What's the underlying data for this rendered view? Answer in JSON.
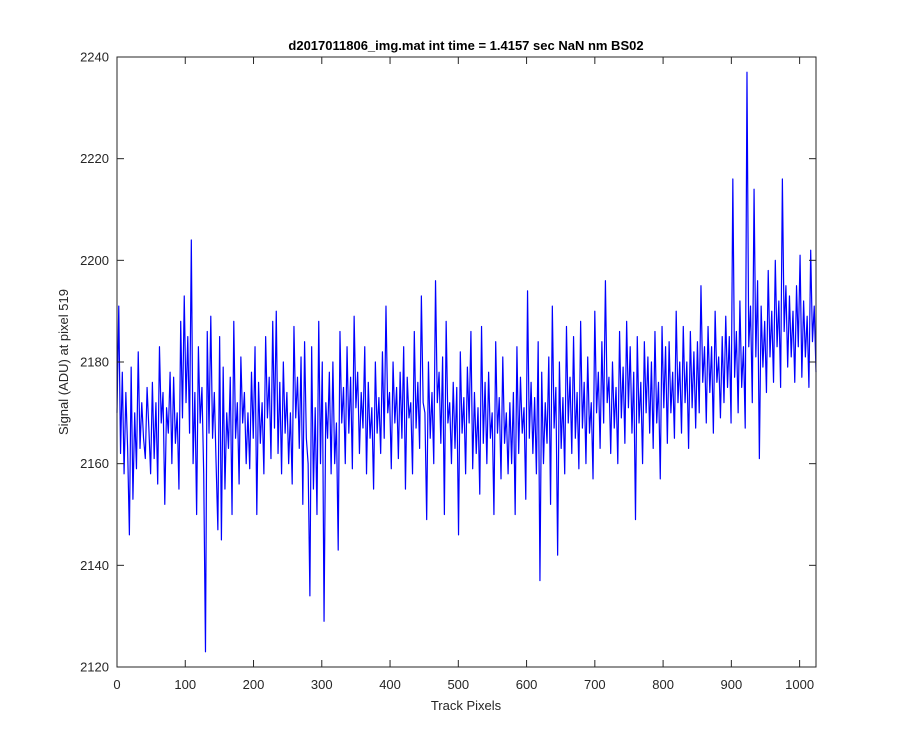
{
  "chart_data": {
    "type": "line",
    "title": "d2017011806_img.mat int time = 1.4157 sec  NaN nm BS02",
    "xlabel": "Track Pixels",
    "ylabel": "Signal (ADU) at pixel 519",
    "xlim": [
      0,
      1024
    ],
    "ylim": [
      2120,
      2240
    ],
    "xticks": [
      0,
      100,
      200,
      300,
      400,
      500,
      600,
      700,
      800,
      900,
      1000
    ],
    "yticks": [
      2120,
      2140,
      2160,
      2180,
      2200,
      2220,
      2240
    ],
    "grid": false,
    "line_color": "#0000ff",
    "series": [
      {
        "values": [
          2170,
          2191,
          2162,
          2178,
          2158,
          2174,
          2163,
          2146,
          2179,
          2153,
          2170,
          2159,
          2182,
          2163,
          2172,
          2165,
          2161,
          2175,
          2167,
          2158,
          2176,
          2161,
          2172,
          2156,
          2183,
          2168,
          2174,
          2152,
          2171,
          2166,
          2178,
          2160,
          2177,
          2164,
          2170,
          2155,
          2188,
          2169,
          2193,
          2172,
          2185,
          2166,
          2204,
          2160,
          2174,
          2150,
          2183,
          2168,
          2175,
          2158,
          2123,
          2186,
          2166,
          2189,
          2165,
          2174,
          2160,
          2147,
          2185,
          2145,
          2179,
          2155,
          2170,
          2163,
          2177,
          2150,
          2188,
          2165,
          2172,
          2156,
          2181,
          2168,
          2174,
          2160,
          2170,
          2159,
          2178,
          2165,
          2183,
          2150,
          2176,
          2164,
          2172,
          2158,
          2185,
          2169,
          2177,
          2161,
          2188,
          2167,
          2190,
          2162,
          2176,
          2158,
          2180,
          2166,
          2174,
          2160,
          2170,
          2156,
          2187,
          2169,
          2177,
          2163,
          2181,
          2152,
          2184,
          2165,
          2160,
          2134,
          2183,
          2155,
          2171,
          2150,
          2188,
          2160,
          2180,
          2129,
          2172,
          2165,
          2178,
          2158,
          2180,
          2160,
          2168,
          2143,
          2186,
          2168,
          2175,
          2160,
          2183,
          2166,
          2177,
          2159,
          2189,
          2171,
          2178,
          2162,
          2174,
          2167,
          2183,
          2158,
          2176,
          2165,
          2171,
          2155,
          2180,
          2166,
          2173,
          2162,
          2182,
          2165,
          2191,
          2170,
          2174,
          2159,
          2180,
          2168,
          2175,
          2161,
          2178,
          2165,
          2183,
          2155,
          2177,
          2169,
          2172,
          2158,
          2186,
          2167,
          2176,
          2163,
          2193,
          2172,
          2170,
          2149,
          2180,
          2165,
          2174,
          2160,
          2196,
          2172,
          2178,
          2164,
          2181,
          2150,
          2188,
          2168,
          2172,
          2160,
          2176,
          2163,
          2175,
          2146,
          2182,
          2166,
          2173,
          2158,
          2179,
          2168,
          2186,
          2159,
          2174,
          2162,
          2171,
          2154,
          2187,
          2164,
          2176,
          2160,
          2178,
          2165,
          2170,
          2150,
          2184,
          2166,
          2173,
          2157,
          2181,
          2164,
          2170,
          2158,
          2172,
          2160,
          2174,
          2150,
          2183,
          2162,
          2177,
          2166,
          2171,
          2153,
          2194,
          2165,
          2176,
          2162,
          2173,
          2158,
          2184,
          2137,
          2178,
          2160,
          2172,
          2164,
          2181,
          2152,
          2191,
          2167,
          2175,
          2142,
          2180,
          2163,
          2173,
          2158,
          2187,
          2168,
          2177,
          2162,
          2185,
          2165,
          2174,
          2159,
          2188,
          2167,
          2176,
          2160,
          2181,
          2166,
          2172,
          2157,
          2190,
          2170,
          2178,
          2163,
          2184,
          2168,
          2196,
          2172,
          2177,
          2162,
          2180,
          2167,
          2175,
          2160,
          2186,
          2169,
          2179,
          2164,
          2188,
          2171,
          2183,
          2166,
          2178,
          2149,
          2185,
          2168,
          2176,
          2160,
          2184,
          2170,
          2181,
          2166,
          2180,
          2163,
          2186,
          2168,
          2176,
          2157,
          2187,
          2171,
          2183,
          2164,
          2184,
          2170,
          2178,
          2165,
          2190,
          2172,
          2180,
          2166,
          2187,
          2172,
          2180,
          2163,
          2186,
          2171,
          2182,
          2167,
          2184,
          2170,
          2195,
          2176,
          2183,
          2168,
          2187,
          2174,
          2183,
          2166,
          2190,
          2176,
          2181,
          2169,
          2185,
          2172,
          2189,
          2175,
          2185,
          2168,
          2216,
          2177,
          2186,
          2170,
          2192,
          2175,
          2183,
          2167,
          2237,
          2183,
          2191,
          2172,
          2214,
          2181,
          2196,
          2161,
          2191,
          2179,
          2188,
          2174,
          2198,
          2181,
          2190,
          2176,
          2200,
          2183,
          2192,
          2175,
          2216,
          2186,
          2195,
          2179,
          2193,
          2181,
          2190,
          2176,
          2195,
          2183,
          2201,
          2177,
          2192,
          2181,
          2189,
          2175,
          2202,
          2184,
          2191,
          2178
        ]
      }
    ]
  }
}
